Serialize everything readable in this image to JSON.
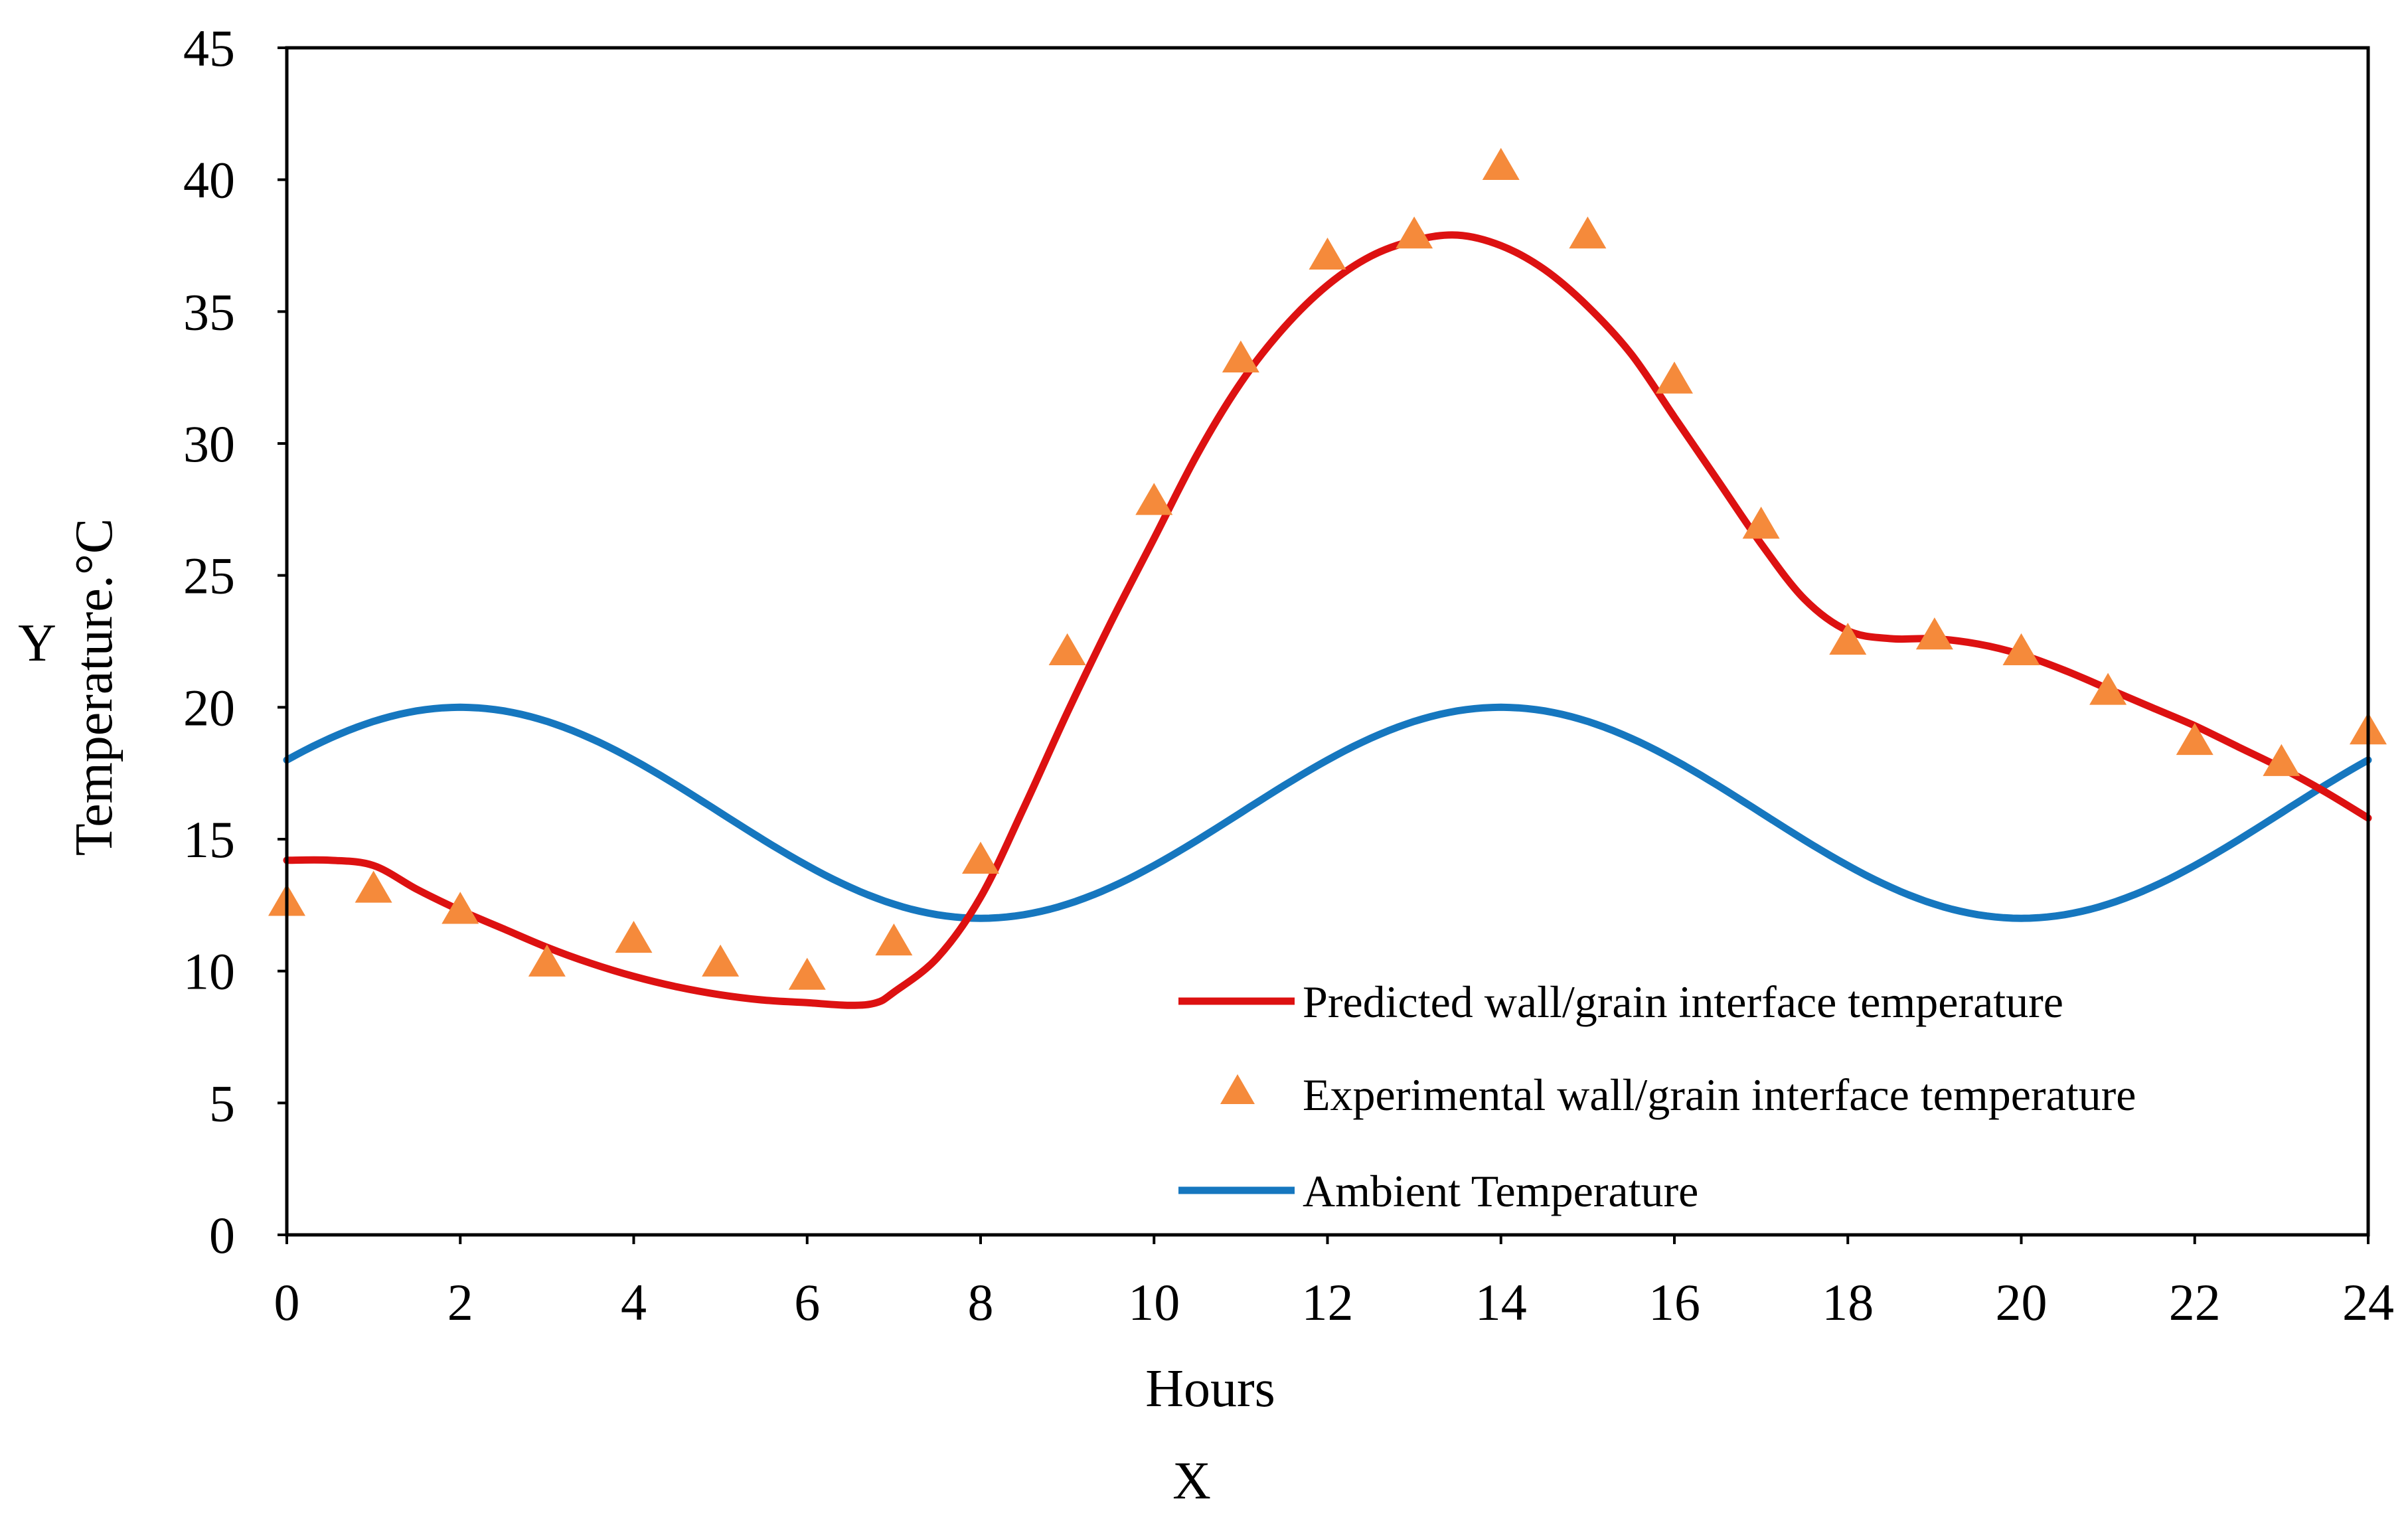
{
  "chart_data": {
    "type": "line",
    "title": "",
    "xlabel": "Hours",
    "ylabel": "Temperature.°C",
    "x_axis_letter": "X",
    "y_axis_letter": "Y",
    "xlim": [
      0,
      24
    ],
    "ylim": [
      0,
      45
    ],
    "xticks": [
      0,
      2,
      4,
      6,
      8,
      10,
      12,
      14,
      16,
      18,
      20,
      22,
      24
    ],
    "yticks": [
      0,
      5,
      10,
      15,
      20,
      25,
      30,
      35,
      40,
      45
    ],
    "grid": false,
    "legend_position": "bottom-right",
    "series": [
      {
        "name": "Predicted wall/grain interface temperature",
        "kind": "line",
        "color": "#dd1111",
        "x": [
          0,
          0.5,
          1,
          1.5,
          2,
          2.5,
          3,
          3.5,
          4,
          4.5,
          5,
          5.5,
          6,
          6.5,
          6.8,
          7,
          7.5,
          8,
          8.5,
          9,
          9.5,
          10,
          10.5,
          11,
          11.5,
          12,
          12.5,
          13,
          13.5,
          14,
          14.5,
          15,
          15.5,
          16,
          16.5,
          17,
          17.5,
          18,
          18.5,
          19,
          19.5,
          20,
          20.5,
          21,
          21.5,
          22,
          22.5,
          23,
          23.5,
          24
        ],
        "y": [
          14.2,
          14.2,
          14.0,
          13.1,
          12.3,
          11.6,
          10.9,
          10.3,
          9.8,
          9.4,
          9.1,
          8.9,
          8.8,
          8.7,
          8.8,
          9.2,
          10.5,
          12.8,
          16.2,
          19.8,
          23.2,
          26.4,
          29.6,
          32.3,
          34.4,
          36.0,
          37.1,
          37.7,
          37.9,
          37.5,
          36.6,
          35.2,
          33.4,
          31.0,
          28.6,
          26.2,
          24.1,
          22.9,
          22.6,
          22.6,
          22.4,
          22.0,
          21.4,
          20.7,
          20.0,
          19.3,
          18.5,
          17.7,
          16.8,
          15.8
        ]
      },
      {
        "name": "Experimental wall/grain interface temperature",
        "kind": "scatter",
        "marker": "triangle",
        "color": "#f58a3b",
        "x": [
          0,
          1,
          2,
          3,
          4,
          5,
          6,
          7,
          8,
          9,
          10,
          11,
          12,
          13,
          14,
          15,
          16,
          17,
          18,
          19,
          20,
          21,
          22,
          23,
          24
        ],
        "y": [
          12.6,
          13.1,
          12.3,
          10.3,
          11.2,
          10.3,
          9.8,
          11.1,
          14.2,
          22.1,
          27.8,
          33.2,
          37.1,
          37.9,
          40.5,
          37.9,
          32.4,
          26.9,
          22.5,
          22.7,
          22.1,
          20.6,
          18.7,
          17.9,
          19.1
        ]
      },
      {
        "name": "Ambient Temperature",
        "kind": "line",
        "color": "#1677bf",
        "function": "16 + 4*sin(pi*(x+1)/6)",
        "x": [
          0,
          2,
          4,
          6,
          8,
          10,
          12,
          14,
          16,
          18,
          20,
          22,
          24
        ],
        "y": [
          18.0,
          20.0,
          18.0,
          14.0,
          12.0,
          14.0,
          18.0,
          20.0,
          18.0,
          14.0,
          12.0,
          14.0,
          18.0
        ]
      }
    ]
  }
}
